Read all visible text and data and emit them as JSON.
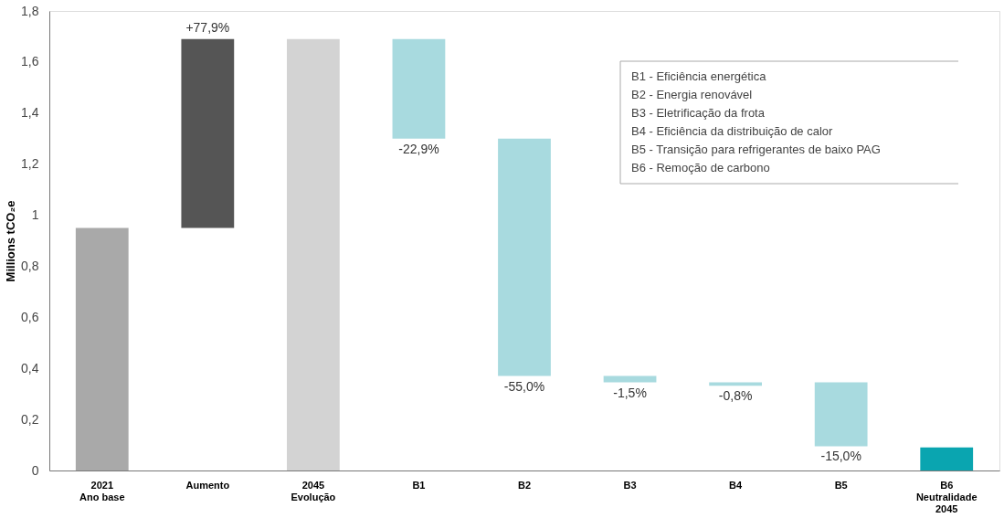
{
  "chart_data": {
    "type": "bar",
    "ylabel": "Millions tCO₂e",
    "categories": [
      "2021\nAno base",
      "Aumento",
      "2045\nEvolução",
      "B1",
      "B2",
      "B3",
      "B4",
      "B5",
      "B6\nNeutralidade\n2045"
    ],
    "base": [
      0,
      0.95,
      0,
      1.69,
      1.3,
      0.37,
      0.345,
      0.345,
      0
    ],
    "values": [
      0.95,
      0.74,
      1.69,
      -0.39,
      -0.93,
      -0.025,
      -0.013,
      -0.25,
      0.09
    ],
    "colors": [
      "#a9a9a9",
      "#555555",
      "#d3d3d3",
      "#a8dadf",
      "#a8dadf",
      "#a8dadf",
      "#a8dadf",
      "#a8dadf",
      "#0aa5b0"
    ],
    "ylim": [
      0,
      1.8
    ],
    "yticks": [
      0,
      {
        "value": 0.2,
        "label": "0,2"
      },
      {
        "value": 0.4,
        "label": "0,4"
      },
      {
        "value": 0.6,
        "label": "0,6"
      },
      {
        "value": 0.8,
        "label": "0,8"
      },
      1,
      {
        "value": 1.2,
        "label": "1,2"
      },
      {
        "value": 1.4,
        "label": "1,4"
      },
      {
        "value": 1.6,
        "label": "1,6"
      },
      {
        "value": 1.8,
        "label": "1,8"
      }
    ],
    "grid": false,
    "annotations": [
      {
        "text": "+77,9%",
        "x": "Aumento",
        "y": 1.69
      },
      {
        "text": "-22,9%",
        "x": "B1",
        "y": 1.3
      },
      {
        "text": "-55,0%",
        "x": "B2",
        "y": 0.37
      },
      {
        "text": "-1,5%",
        "x": "B3",
        "y": 0.345
      },
      {
        "text": "-0,8%",
        "x": "B4",
        "y": 0.332
      },
      {
        "text": "-15,0%",
        "x": "B5",
        "y": 0.095
      },
      "B1 - Eficiência energética",
      "B2 - Energia renovável",
      "B3 - Eletrificação da frota",
      "B4 - Eficiência da distribuição de calor",
      "B5 - Transição para refrigerantes de baixo PAG",
      "B6 - Remoção de carbono"
    ]
  }
}
